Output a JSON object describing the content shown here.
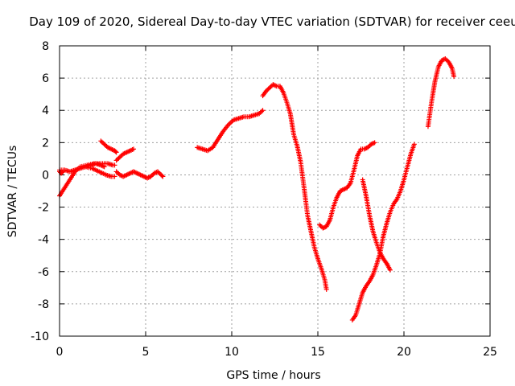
{
  "chart_data": {
    "type": "scatter",
    "title": "Day 109 of 2020, Sidereal Day-to-day VTEC variation (SDTVAR) for receiver ceeu",
    "xlabel": "GPS time / hours",
    "ylabel": "SDTVAR / TECUs",
    "xlim": [
      0,
      25
    ],
    "ylim": [
      -10,
      8
    ],
    "xticks": [
      0,
      5,
      10,
      15,
      20,
      25
    ],
    "yticks": [
      -10,
      -8,
      -6,
      -4,
      -2,
      0,
      2,
      4,
      6,
      8
    ],
    "grid": true,
    "marker": "+",
    "color": "#ff0000",
    "series": [
      {
        "x": [
          0,
          0.3,
          0.6,
          0.9,
          1.2,
          1.6,
          2.0,
          2.4,
          2.8,
          3.1,
          3.2
        ],
        "y": [
          -1.3,
          -0.8,
          -0.3,
          0.2,
          0.5,
          0.6,
          0.7,
          0.7,
          0.7,
          0.6,
          0.6
        ]
      },
      {
        "x": [
          0,
          0.3,
          0.6,
          0.9,
          1.2,
          1.5,
          1.9,
          2.3,
          2.7,
          3.0,
          3.2
        ],
        "y": [
          0.3,
          0.3,
          0.2,
          0.3,
          0.4,
          0.5,
          0.4,
          0.2,
          0.0,
          -0.1,
          -0.1
        ]
      },
      {
        "x": [
          0,
          0.1,
          0.2
        ],
        "y": [
          0.2,
          0.1,
          0.2
        ]
      },
      {
        "x": [
          1.5,
          1.8,
          2.1,
          2.4,
          2.6
        ],
        "y": [
          0.5,
          0.6,
          0.7,
          0.6,
          0.5
        ]
      },
      {
        "x": [
          2.4,
          2.6,
          2.8,
          3.0,
          3.2,
          3.3
        ],
        "y": [
          2.1,
          1.9,
          1.7,
          1.6,
          1.5,
          1.4
        ]
      },
      {
        "x": [
          3.3,
          3.5,
          3.7,
          3.9,
          4.1,
          4.3
        ],
        "y": [
          0.9,
          1.1,
          1.3,
          1.4,
          1.5,
          1.6
        ]
      },
      {
        "x": [
          3.3,
          3.5,
          3.7,
          3.9,
          4.1,
          4.3,
          4.5,
          4.7,
          4.9,
          5.1,
          5.3,
          5.5,
          5.7,
          5.9,
          6.0
        ],
        "y": [
          0.2,
          0.0,
          -0.1,
          0.0,
          0.1,
          0.2,
          0.1,
          0.0,
          -0.1,
          -0.2,
          -0.1,
          0.1,
          0.2,
          0.0,
          -0.1
        ]
      },
      {
        "x": [
          8.0,
          8.3,
          8.6,
          8.9,
          9.2,
          9.5,
          9.8,
          10.1,
          10.4,
          10.7,
          11.0,
          11.3,
          11.6,
          11.8
        ],
        "y": [
          1.7,
          1.6,
          1.5,
          1.7,
          2.2,
          2.7,
          3.1,
          3.4,
          3.5,
          3.6,
          3.6,
          3.7,
          3.8,
          4.0
        ]
      },
      {
        "x": [
          11.8,
          12.0,
          12.2,
          12.4,
          12.6,
          12.8,
          13.0,
          13.2,
          13.4,
          13.6,
          13.8,
          14.0,
          14.2,
          14.4,
          14.6,
          14.8,
          15.0,
          15.2,
          15.4,
          15.5
        ],
        "y": [
          4.9,
          5.2,
          5.4,
          5.6,
          5.5,
          5.5,
          5.1,
          4.5,
          3.8,
          2.5,
          1.8,
          0.8,
          -0.8,
          -2.5,
          -3.5,
          -4.5,
          -5.2,
          -5.8,
          -6.5,
          -7.1
        ]
      },
      {
        "x": [
          15.1,
          15.3,
          15.5,
          15.7,
          15.9,
          16.1,
          16.3,
          16.5,
          16.7,
          16.9,
          17.1,
          17.3,
          17.5,
          17.7,
          17.9,
          18.1,
          18.3
        ],
        "y": [
          -3.1,
          -3.3,
          -3.2,
          -2.8,
          -2.0,
          -1.4,
          -1.0,
          -0.9,
          -0.8,
          -0.5,
          0.3,
          1.2,
          1.6,
          1.6,
          1.7,
          1.9,
          2.0
        ]
      },
      {
        "x": [
          17.6,
          17.8,
          18.0,
          18.2,
          18.4,
          18.6,
          18.8,
          19.0,
          19.2
        ],
        "y": [
          -0.3,
          -1.3,
          -2.5,
          -3.5,
          -4.2,
          -4.8,
          -5.2,
          -5.5,
          -5.9
        ]
      },
      {
        "x": [
          17.0,
          17.2,
          17.4,
          17.6,
          17.8,
          18.0,
          18.2,
          18.4,
          18.6,
          18.8,
          19.0,
          19.2,
          19.4,
          19.6,
          19.8,
          20.0,
          20.2,
          20.4,
          20.6
        ],
        "y": [
          -9.0,
          -8.7,
          -8.0,
          -7.3,
          -6.9,
          -6.6,
          -6.2,
          -5.6,
          -4.9,
          -3.8,
          -3.0,
          -2.3,
          -1.8,
          -1.5,
          -1.0,
          -0.3,
          0.5,
          1.3,
          1.9
        ]
      },
      {
        "x": [
          21.4,
          21.6,
          21.8,
          22.0,
          22.2,
          22.4,
          22.6,
          22.8,
          22.9
        ],
        "y": [
          3.0,
          4.5,
          5.8,
          6.7,
          7.1,
          7.2,
          7.0,
          6.6,
          6.1
        ]
      }
    ]
  }
}
